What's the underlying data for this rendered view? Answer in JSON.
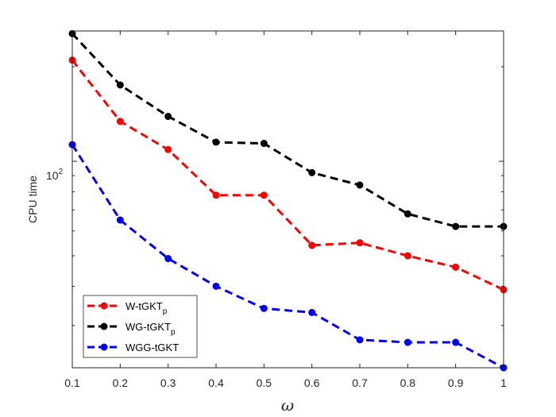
{
  "chart_data": {
    "type": "line",
    "title": "",
    "xlabel": "ω",
    "ylabel": "CPU time",
    "yscale": "log",
    "xlim": [
      0.1,
      1
    ],
    "ylim": [
      22,
      260
    ],
    "xticks": [
      0.1,
      0.2,
      0.3,
      0.4,
      0.5,
      0.6,
      0.7,
      0.8,
      0.9,
      1
    ],
    "xtick_labels": [
      "0.1",
      "0.2",
      "0.3",
      "0.4",
      "0.5",
      "0.6",
      "0.7",
      "0.8",
      "0.9",
      "1"
    ],
    "ytick_label": {
      "base": "10",
      "exponent": "2",
      "value": 100
    },
    "legend_position": "bottom-left",
    "x": [
      0.1,
      0.2,
      0.3,
      0.4,
      0.5,
      0.6,
      0.7,
      0.8,
      0.9,
      1.0
    ],
    "series": [
      {
        "name": "W-tGKT",
        "subscript": "p",
        "color": "#ff0000",
        "values": [
          210,
          134,
          109,
          78,
          78,
          54,
          55,
          50,
          46,
          39
        ]
      },
      {
        "name": "WG-tGKT",
        "subscript": "p",
        "color": "#000000",
        "values": [
          255,
          175,
          139,
          115,
          114,
          92,
          84,
          68,
          62,
          62
        ]
      },
      {
        "name": "WGG-tGKT",
        "subscript": "",
        "color": "#0000ff",
        "values": [
          113,
          65,
          49,
          40,
          34,
          33,
          27,
          26.5,
          26.5,
          22
        ]
      }
    ]
  }
}
